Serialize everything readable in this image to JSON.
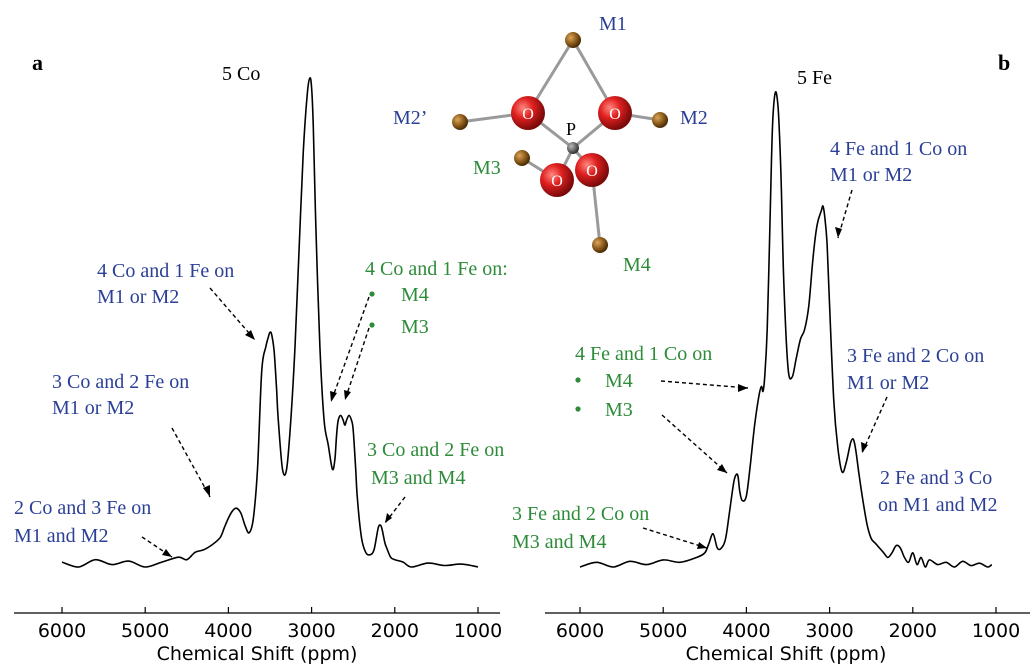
{
  "chart_data": [
    {
      "type": "line",
      "panel_label": "a",
      "spectrum_label": "5 Co",
      "xlabel": "Chemical Shift (ppm)",
      "xlim": [
        6000,
        1000
      ],
      "xticks": [
        "6000",
        "5000",
        "4000",
        "3000",
        "2000",
        "1000"
      ],
      "x": [
        6000,
        5800,
        5600,
        5400,
        5200,
        5000,
        4800,
        4600,
        4500,
        4400,
        4300,
        4200,
        4100,
        4050,
        4000,
        3950,
        3900,
        3850,
        3800,
        3750,
        3700,
        3650,
        3600,
        3550,
        3520,
        3500,
        3480,
        3450,
        3420,
        3400,
        3350,
        3300,
        3250,
        3200,
        3150,
        3100,
        3050,
        3020,
        3000,
        2980,
        2950,
        2900,
        2850,
        2800,
        2750,
        2720,
        2700,
        2680,
        2650,
        2620,
        2600,
        2580,
        2550,
        2520,
        2500,
        2470,
        2450,
        2400,
        2350,
        2300,
        2250,
        2200,
        2170,
        2150,
        2120,
        2100,
        2050,
        2000,
        1900,
        1800,
        1600,
        1400,
        1200,
        1000
      ],
      "y": [
        0.01,
        0.0,
        0.015,
        0.005,
        0.012,
        0.0,
        0.01,
        0.02,
        0.015,
        0.03,
        0.035,
        0.045,
        0.06,
        0.08,
        0.1,
        0.115,
        0.12,
        0.11,
        0.085,
        0.07,
        0.1,
        0.2,
        0.4,
        0.45,
        0.47,
        0.48,
        0.475,
        0.44,
        0.36,
        0.3,
        0.2,
        0.2,
        0.3,
        0.45,
        0.65,
        0.85,
        0.97,
        1.0,
        0.98,
        0.9,
        0.7,
        0.45,
        0.3,
        0.25,
        0.2,
        0.22,
        0.27,
        0.3,
        0.31,
        0.3,
        0.29,
        0.3,
        0.31,
        0.3,
        0.28,
        0.2,
        0.14,
        0.06,
        0.03,
        0.025,
        0.035,
        0.08,
        0.085,
        0.075,
        0.05,
        0.04,
        0.02,
        0.015,
        0.01,
        0.0,
        0.008,
        0.003,
        0.006,
        0.0
      ],
      "annotations": [
        {
          "lines": [
            "4 Co and 1 Fe on",
            "M1 or M2"
          ],
          "color": "blue"
        },
        {
          "lines": [
            "3 Co and 2 Fe on",
            "M1 or M2"
          ],
          "color": "blue"
        },
        {
          "lines": [
            "2 Co and 3 Fe on",
            "M1 and M2"
          ],
          "color": "blue"
        },
        {
          "lines": [
            "4 Co and 1 Fe on:",
            "M4",
            "M3"
          ],
          "color": "green"
        },
        {
          "lines": [
            "3 Co and 2 Fe on",
            "M3 and M4"
          ],
          "color": "green"
        }
      ]
    },
    {
      "type": "line",
      "panel_label": "b",
      "spectrum_label": "5 Fe",
      "xlabel": "Chemical Shift (ppm)",
      "xlim": [
        6000,
        1000
      ],
      "xticks": [
        "6000",
        "5000",
        "4000",
        "3000",
        "2000",
        "1000"
      ],
      "x": [
        6000,
        5800,
        5600,
        5400,
        5200,
        5000,
        4800,
        4600,
        4500,
        4450,
        4400,
        4350,
        4300,
        4250,
        4200,
        4150,
        4120,
        4100,
        4080,
        4050,
        4000,
        3950,
        3900,
        3850,
        3820,
        3800,
        3780,
        3750,
        3720,
        3700,
        3680,
        3650,
        3620,
        3600,
        3580,
        3550,
        3500,
        3450,
        3400,
        3350,
        3300,
        3250,
        3200,
        3150,
        3100,
        3080,
        3060,
        3030,
        3000,
        2950,
        2900,
        2850,
        2800,
        2750,
        2720,
        2700,
        2680,
        2650,
        2600,
        2550,
        2500,
        2450,
        2400,
        2350,
        2300,
        2250,
        2200,
        2150,
        2100,
        2050,
        2000,
        1950,
        1900,
        1850,
        1800,
        1700,
        1600,
        1500,
        1400,
        1300,
        1200,
        1100,
        1050
      ],
      "y": [
        0.0,
        0.01,
        0.0,
        0.012,
        0.005,
        0.015,
        0.01,
        0.02,
        0.03,
        0.05,
        0.07,
        0.04,
        0.04,
        0.06,
        0.12,
        0.18,
        0.195,
        0.19,
        0.16,
        0.14,
        0.15,
        0.22,
        0.3,
        0.36,
        0.38,
        0.37,
        0.4,
        0.5,
        0.7,
        0.85,
        0.95,
        1.0,
        0.97,
        0.9,
        0.8,
        0.6,
        0.42,
        0.4,
        0.44,
        0.48,
        0.5,
        0.55,
        0.65,
        0.72,
        0.75,
        0.76,
        0.74,
        0.68,
        0.55,
        0.35,
        0.25,
        0.2,
        0.22,
        0.26,
        0.27,
        0.26,
        0.24,
        0.2,
        0.14,
        0.09,
        0.06,
        0.05,
        0.04,
        0.03,
        0.02,
        0.03,
        0.045,
        0.04,
        0.02,
        0.01,
        0.03,
        0.005,
        0.02,
        0.0,
        0.015,
        0.005,
        0.01,
        0.0,
        0.012,
        0.003,
        0.008,
        0.0,
        0.005
      ],
      "annotations": [
        {
          "lines": [
            "4 Fe and 1 Co on",
            "M1 or M2"
          ],
          "color": "blue"
        },
        {
          "lines": [
            "3 Fe and 2 Co on",
            "M1 or M2"
          ],
          "color": "blue"
        },
        {
          "lines": [
            "2 Fe and 3 Co",
            "on M1 and M2"
          ],
          "color": "blue"
        },
        {
          "lines": [
            "4 Fe and 1 Co on",
            "M4",
            "M3"
          ],
          "color": "green"
        },
        {
          "lines": [
            "3 Fe and 2 Co on",
            "M3 and M4"
          ],
          "color": "green"
        }
      ]
    }
  ],
  "structure": {
    "center_label": "P",
    "oxygen_label": "O",
    "site_labels": [
      {
        "text": "M1",
        "color": "blue"
      },
      {
        "text": "M2",
        "color": "blue"
      },
      {
        "text": "M2’",
        "color": "blue"
      },
      {
        "text": "M3",
        "color": "green"
      },
      {
        "text": "M4",
        "color": "green"
      }
    ]
  },
  "colors": {
    "blue": "#2b3f96",
    "green": "#2e8b3a",
    "trace": "#000000",
    "oxygen": "#d91e1e",
    "metal": "#8b5a1a",
    "phosphorus": "#555555"
  }
}
